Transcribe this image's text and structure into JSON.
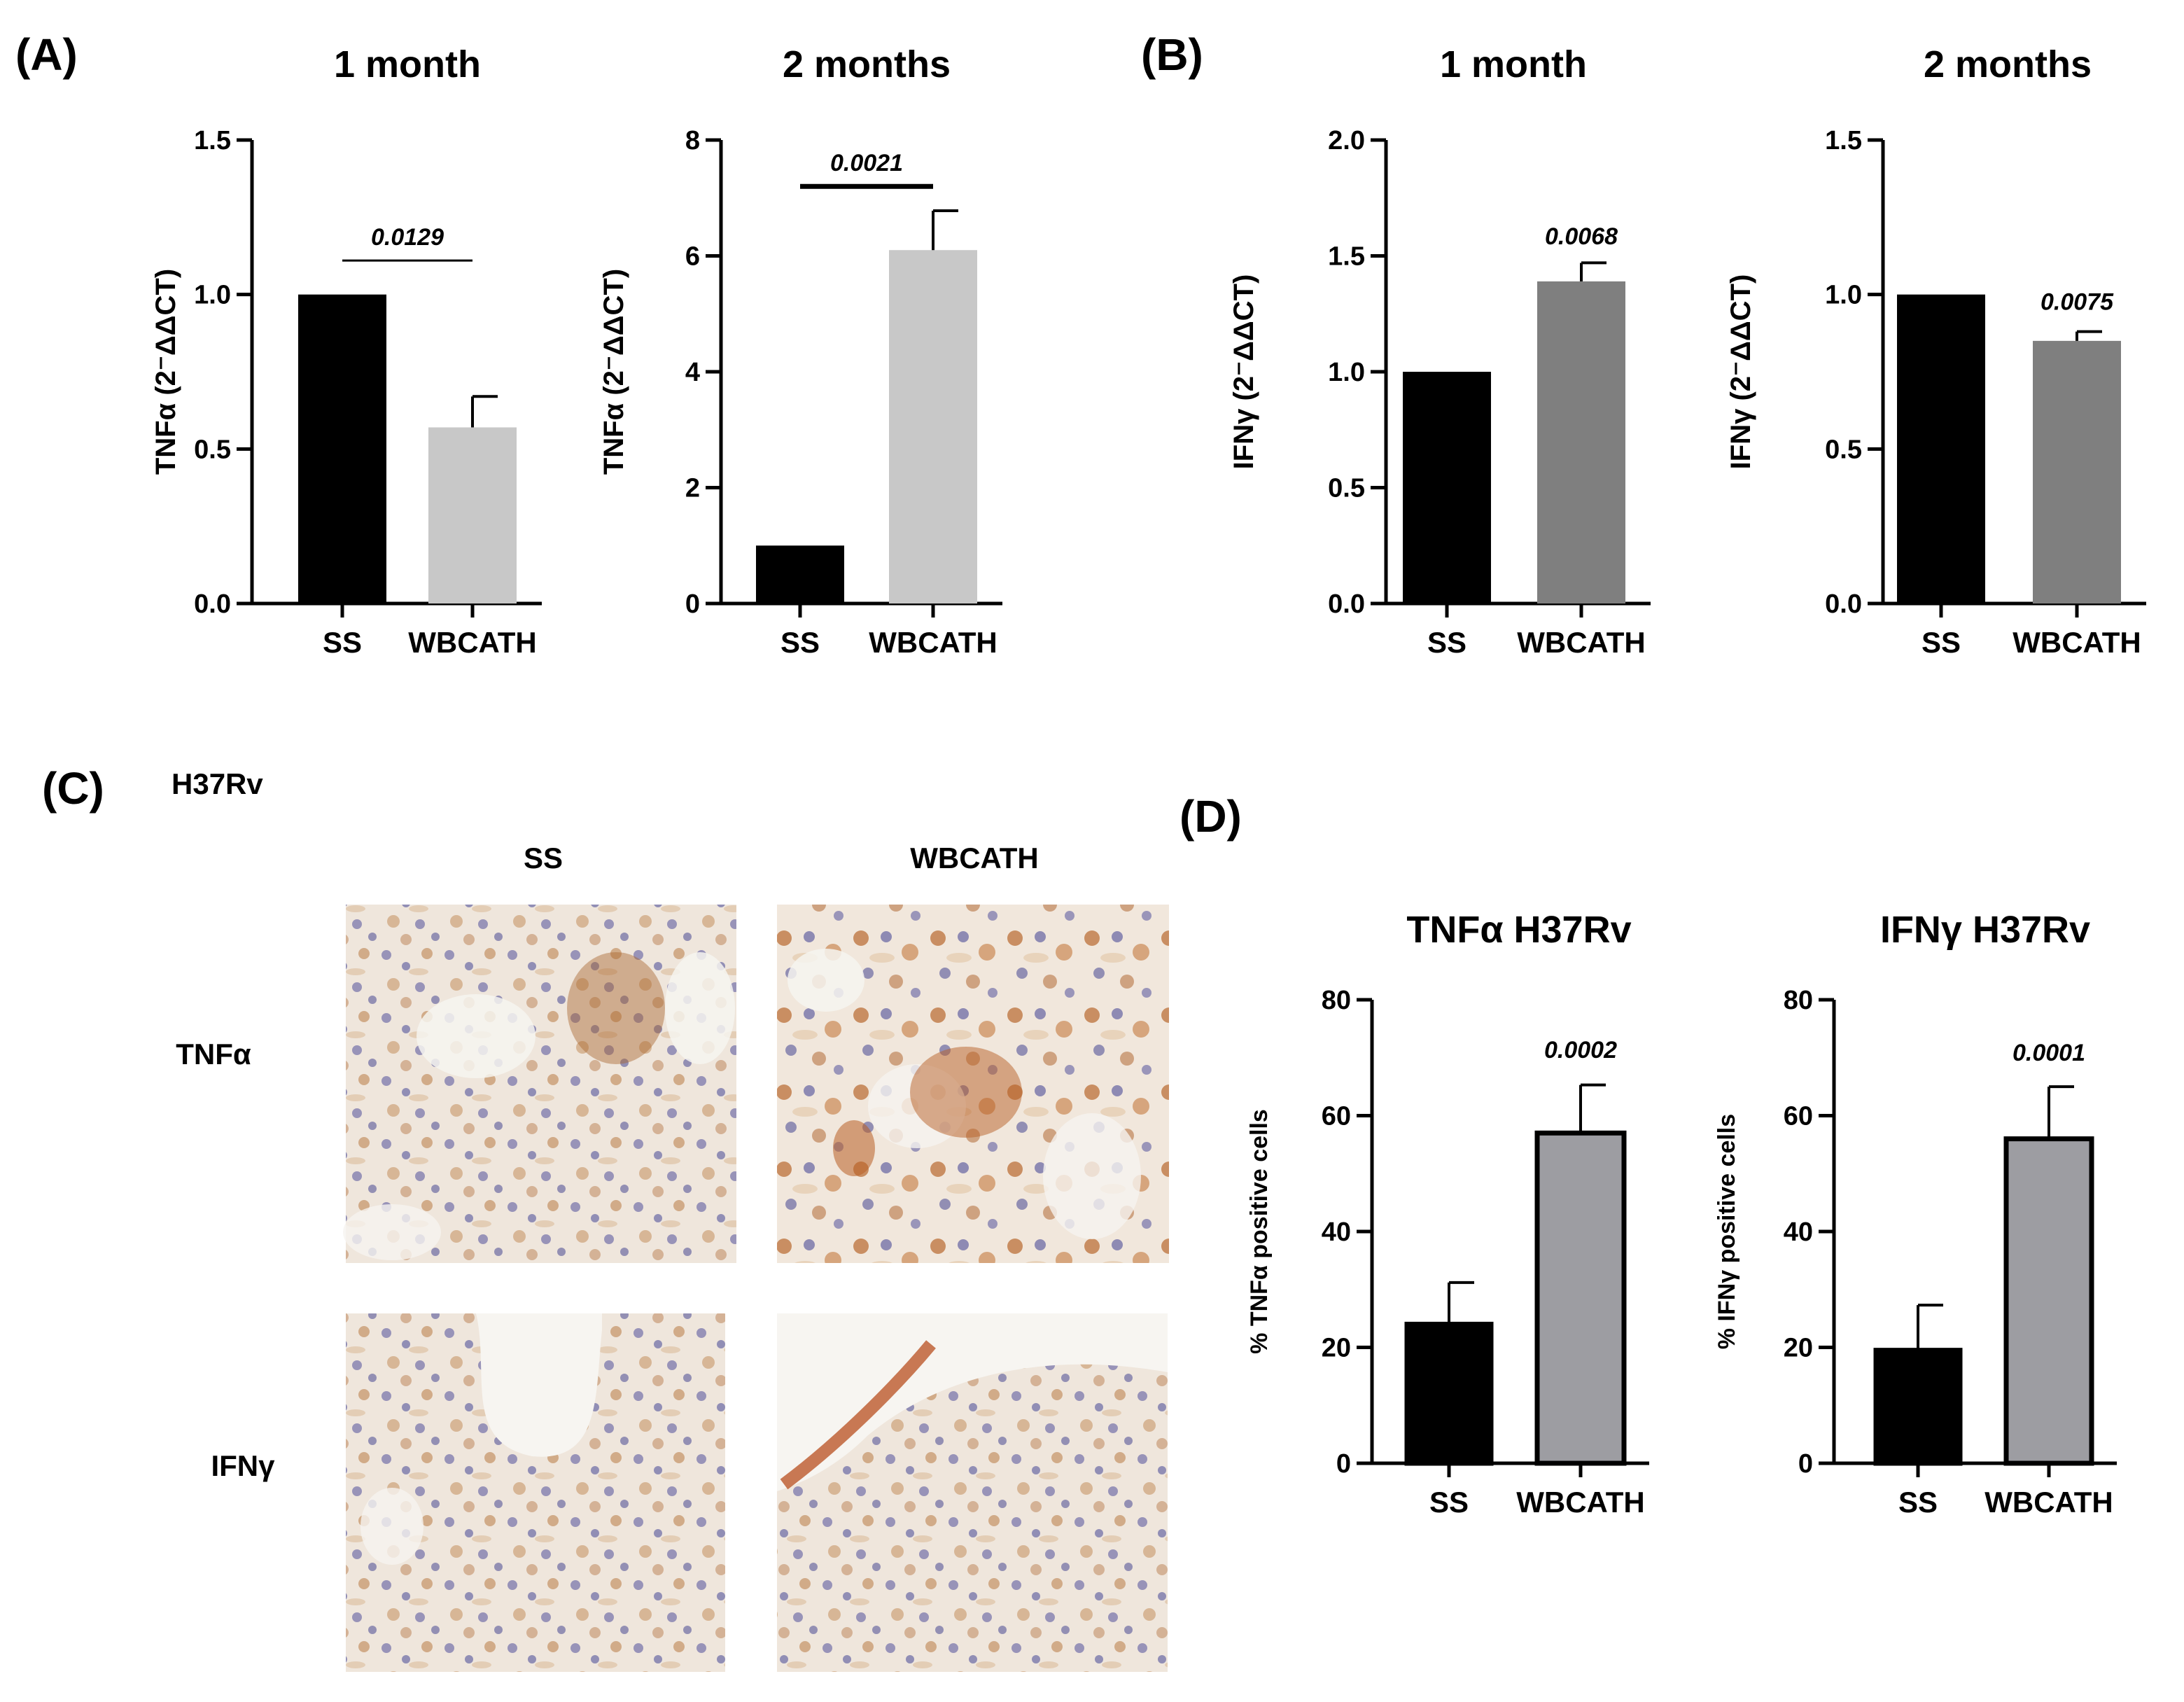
{
  "panels": {
    "A": {
      "letter": "(A)"
    },
    "B": {
      "letter": "(B)"
    },
    "C": {
      "letter": "(C)",
      "strain": "H37Rv",
      "col_labels": [
        "SS",
        "WBCATH"
      ],
      "row_labels": [
        "TNFα",
        "IFNγ"
      ]
    },
    "D": {
      "letter": "(D)"
    }
  },
  "colors": {
    "black": "#000000",
    "light_gray": "#c8c8c8",
    "mid_gray": "#7f7f7f",
    "d_gray": "#9d9da2",
    "tissue_base": "#ece4da",
    "stain_brown": "#b8763e",
    "nuclei_blue": "#6e6ea8"
  },
  "chart_data": [
    {
      "id": "A1",
      "type": "bar",
      "title": "1 month",
      "ylabel": "TNFα (2⁻ΔΔCT)",
      "ylim": [
        0,
        1.5
      ],
      "yticks": [
        "0.0",
        "0.5",
        "1.0",
        "1.5"
      ],
      "categories": [
        "SS",
        "WBCATH"
      ],
      "values": [
        1.0,
        0.57
      ],
      "errors": [
        0,
        0.1
      ],
      "colors": [
        "#000000",
        "#c8c8c8"
      ],
      "bar_outline": false,
      "annotation": {
        "text": "0.0129",
        "bracket": true,
        "y": 1.11
      }
    },
    {
      "id": "A2",
      "type": "bar",
      "title": "2 months",
      "ylabel": "TNFα (2⁻ΔΔCT)",
      "ylim": [
        0,
        8
      ],
      "yticks": [
        "0",
        "2",
        "4",
        "6",
        "8"
      ],
      "categories": [
        "SS",
        "WBCATH"
      ],
      "values": [
        1.0,
        6.1
      ],
      "errors": [
        0,
        0.68
      ],
      "colors": [
        "#000000",
        "#c8c8c8"
      ],
      "bar_outline": false,
      "annotation": {
        "text": "0.0021",
        "bracket": true,
        "y": 7.2
      }
    },
    {
      "id": "B1",
      "type": "bar",
      "title": "1 month",
      "ylabel": "IFNγ (2⁻ΔΔCT)",
      "ylim": [
        0,
        2.0
      ],
      "yticks": [
        "0.0",
        "0.5",
        "1.0",
        "1.5",
        "2.0"
      ],
      "categories": [
        "SS",
        "WBCATH"
      ],
      "values": [
        1.0,
        1.39
      ],
      "errors": [
        0,
        0.08
      ],
      "colors": [
        "#000000",
        "#7f7f7f"
      ],
      "bar_outline": false,
      "annotation": {
        "text": "0.0068",
        "bracket": false,
        "y": 1.55
      }
    },
    {
      "id": "B2",
      "type": "bar",
      "title": "2 months",
      "ylabel": "IFNγ (2⁻ΔΔCT)",
      "ylim": [
        0,
        1.5
      ],
      "yticks": [
        "0.0",
        "0.5",
        "1.0",
        "1.5"
      ],
      "categories": [
        "SS",
        "WBCATH"
      ],
      "values": [
        1.0,
        0.85
      ],
      "errors": [
        0,
        0.03
      ],
      "colors": [
        "#000000",
        "#7f7f7f"
      ],
      "bar_outline": false,
      "annotation": {
        "text": "0.0075",
        "bracket": false,
        "y": 0.95
      }
    },
    {
      "id": "D1",
      "type": "bar",
      "title": "TNFα H37Rv",
      "ylabel": "% TNFα  positive cells",
      "ylim": [
        0,
        80
      ],
      "yticks": [
        "0",
        "20",
        "40",
        "60",
        "80"
      ],
      "categories": [
        "SS",
        "WBCATH"
      ],
      "values": [
        24,
        57
      ],
      "errors": [
        7.2,
        8.3
      ],
      "colors": [
        "#000000",
        "#9d9da2"
      ],
      "bar_outline": true,
      "annotation": {
        "text": "0.0002",
        "bracket": false,
        "y": 70
      }
    },
    {
      "id": "D2",
      "type": "bar",
      "title": "IFNγ H37Rv",
      "ylabel": "% IFNγ positive cells",
      "ylim": [
        0,
        80
      ],
      "yticks": [
        "0",
        "20",
        "40",
        "60",
        "80"
      ],
      "categories": [
        "SS",
        "WBCATH"
      ],
      "values": [
        19.5,
        56
      ],
      "errors": [
        7.8,
        9
      ],
      "colors": [
        "#000000",
        "#9d9da2"
      ],
      "bar_outline": true,
      "annotation": {
        "text": "0.0001",
        "bracket": false,
        "y": 69.5
      }
    }
  ]
}
